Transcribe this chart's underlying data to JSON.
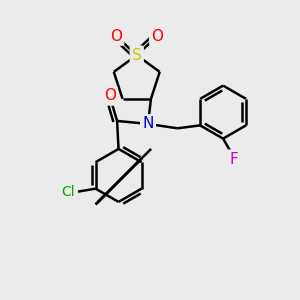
{
  "background_color": "#ebebeb",
  "atom_colors": {
    "C": "#000000",
    "N": "#0000cc",
    "O": "#ff0000",
    "S": "#cccc00",
    "Cl": "#00aa00",
    "F": "#cc00cc"
  },
  "figsize": [
    3.0,
    3.0
  ],
  "dpi": 100
}
